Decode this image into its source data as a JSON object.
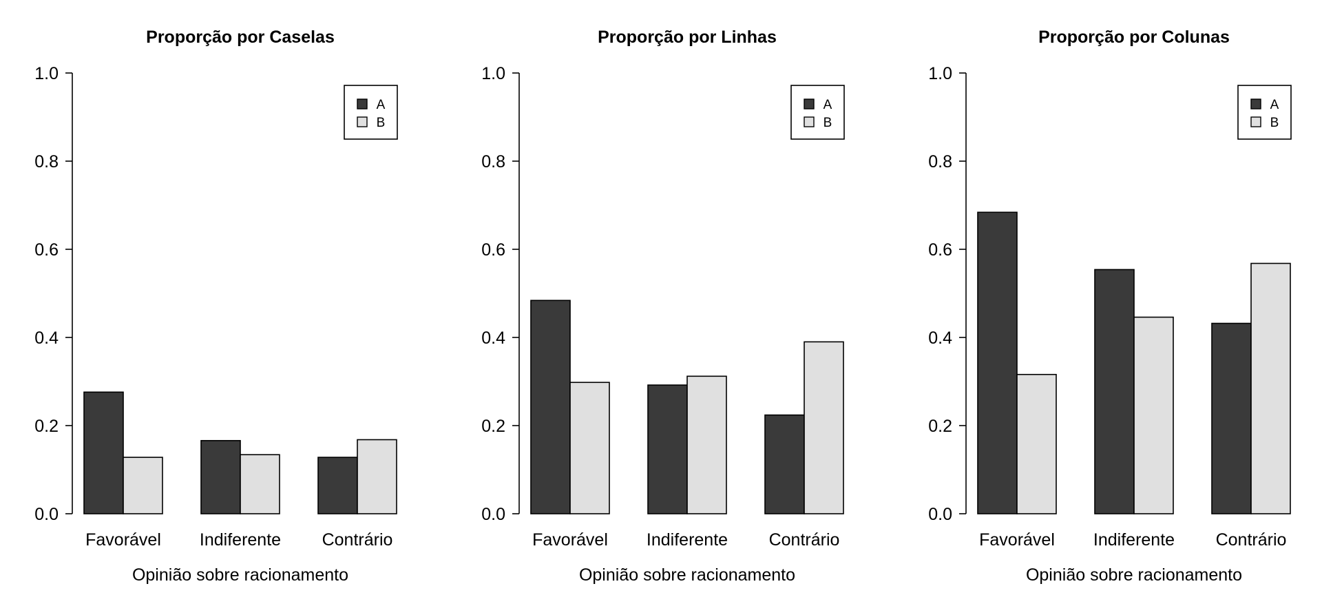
{
  "chart_data": [
    {
      "type": "bar",
      "title": "Proporção por Caselas",
      "xlabel": "Opinião sobre racionamento",
      "ylabel": "",
      "ylim": [
        0,
        1
      ],
      "yticks": [
        "0.0",
        "0.2",
        "0.4",
        "0.6",
        "0.8",
        "1.0"
      ],
      "categories": [
        "Favorável",
        "Indiferente",
        "Contrário"
      ],
      "series": [
        {
          "name": "A",
          "values": [
            0.276,
            0.166,
            0.128
          ],
          "color": "#3a3a3a"
        },
        {
          "name": "B",
          "values": [
            0.128,
            0.134,
            0.168
          ],
          "color": "#e0e0e0"
        }
      ],
      "legend": "top-right",
      "grid": false
    },
    {
      "type": "bar",
      "title": "Proporção por Linhas",
      "xlabel": "Opinião sobre racionamento",
      "ylabel": "",
      "ylim": [
        0,
        1
      ],
      "yticks": [
        "0.0",
        "0.2",
        "0.4",
        "0.6",
        "0.8",
        "1.0"
      ],
      "categories": [
        "Favorável",
        "Indiferente",
        "Contrário"
      ],
      "series": [
        {
          "name": "A",
          "values": [
            0.484,
            0.292,
            0.224
          ],
          "color": "#3a3a3a"
        },
        {
          "name": "B",
          "values": [
            0.298,
            0.312,
            0.39
          ],
          "color": "#e0e0e0"
        }
      ],
      "legend": "top-right",
      "grid": false
    },
    {
      "type": "bar",
      "title": "Proporção por Colunas",
      "xlabel": "Opinião sobre racionamento",
      "ylabel": "",
      "ylim": [
        0,
        1
      ],
      "yticks": [
        "0.0",
        "0.2",
        "0.4",
        "0.6",
        "0.8",
        "1.0"
      ],
      "categories": [
        "Favorável",
        "Indiferente",
        "Contrário"
      ],
      "series": [
        {
          "name": "A",
          "values": [
            0.684,
            0.554,
            0.432
          ],
          "color": "#3a3a3a"
        },
        {
          "name": "B",
          "values": [
            0.316,
            0.446,
            0.568
          ],
          "color": "#e0e0e0"
        }
      ],
      "legend": "top-right",
      "grid": false
    }
  ]
}
